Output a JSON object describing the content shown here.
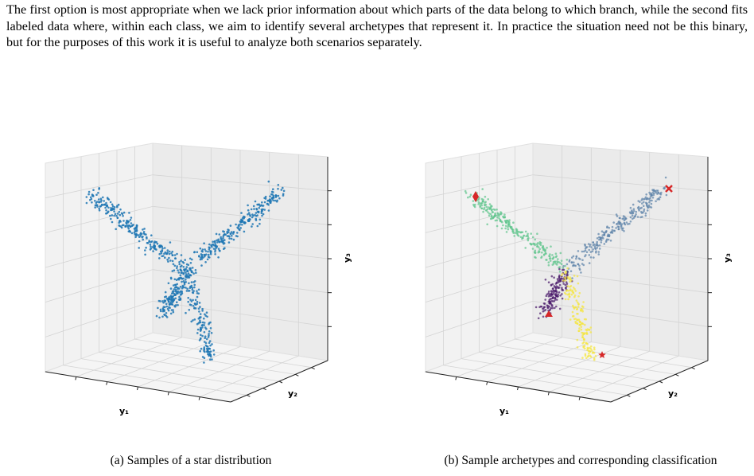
{
  "paragraph": "The first option is most appropriate when we lack prior information about which parts of the data belong to which branch, while the second fits labeled data where, within each class, we aim to identify several archetypes that represent it. In practice the situation need not be this binary, but for the purposes of this work it is useful to analyze both scenarios separately.",
  "figures": [
    {
      "caption": "(a) Samples of a star distribution",
      "axes": {
        "x": "y₁",
        "y": "y₂",
        "z": "y₃"
      }
    },
    {
      "caption": "(b) Sample archetypes and corresponding classification",
      "axes": {
        "x": "y₁",
        "y": "y₂",
        "z": "y₃"
      }
    }
  ],
  "chart_data": [
    {
      "type": "scatter",
      "projection": "3d",
      "title": "",
      "xlabel": "y₁",
      "ylabel": "y₂",
      "zlabel": "y₃",
      "grid": true,
      "color": "#1f77b4",
      "series": [
        {
          "branch_ends": [
            [
              -1,
              0.6
            ],
            [
              1,
              1
            ],
            [
              -0.35,
              -0.75
            ],
            [
              0.35,
              -1
            ]
          ]
        }
      ]
    },
    {
      "type": "scatter",
      "projection": "3d",
      "title": "",
      "xlabel": "y₁",
      "ylabel": "y₂",
      "zlabel": "y₃",
      "grid": true,
      "branches": [
        {
          "color": "#5ec58b",
          "archetype_marker": "diamond"
        },
        {
          "color": "#5b82a8",
          "archetype_marker": "x"
        },
        {
          "color": "#48186a",
          "archetype_marker": "triangle"
        },
        {
          "color": "#f5e53a",
          "archetype_marker": "star"
        }
      ],
      "archetype_color": "#d62728"
    }
  ]
}
